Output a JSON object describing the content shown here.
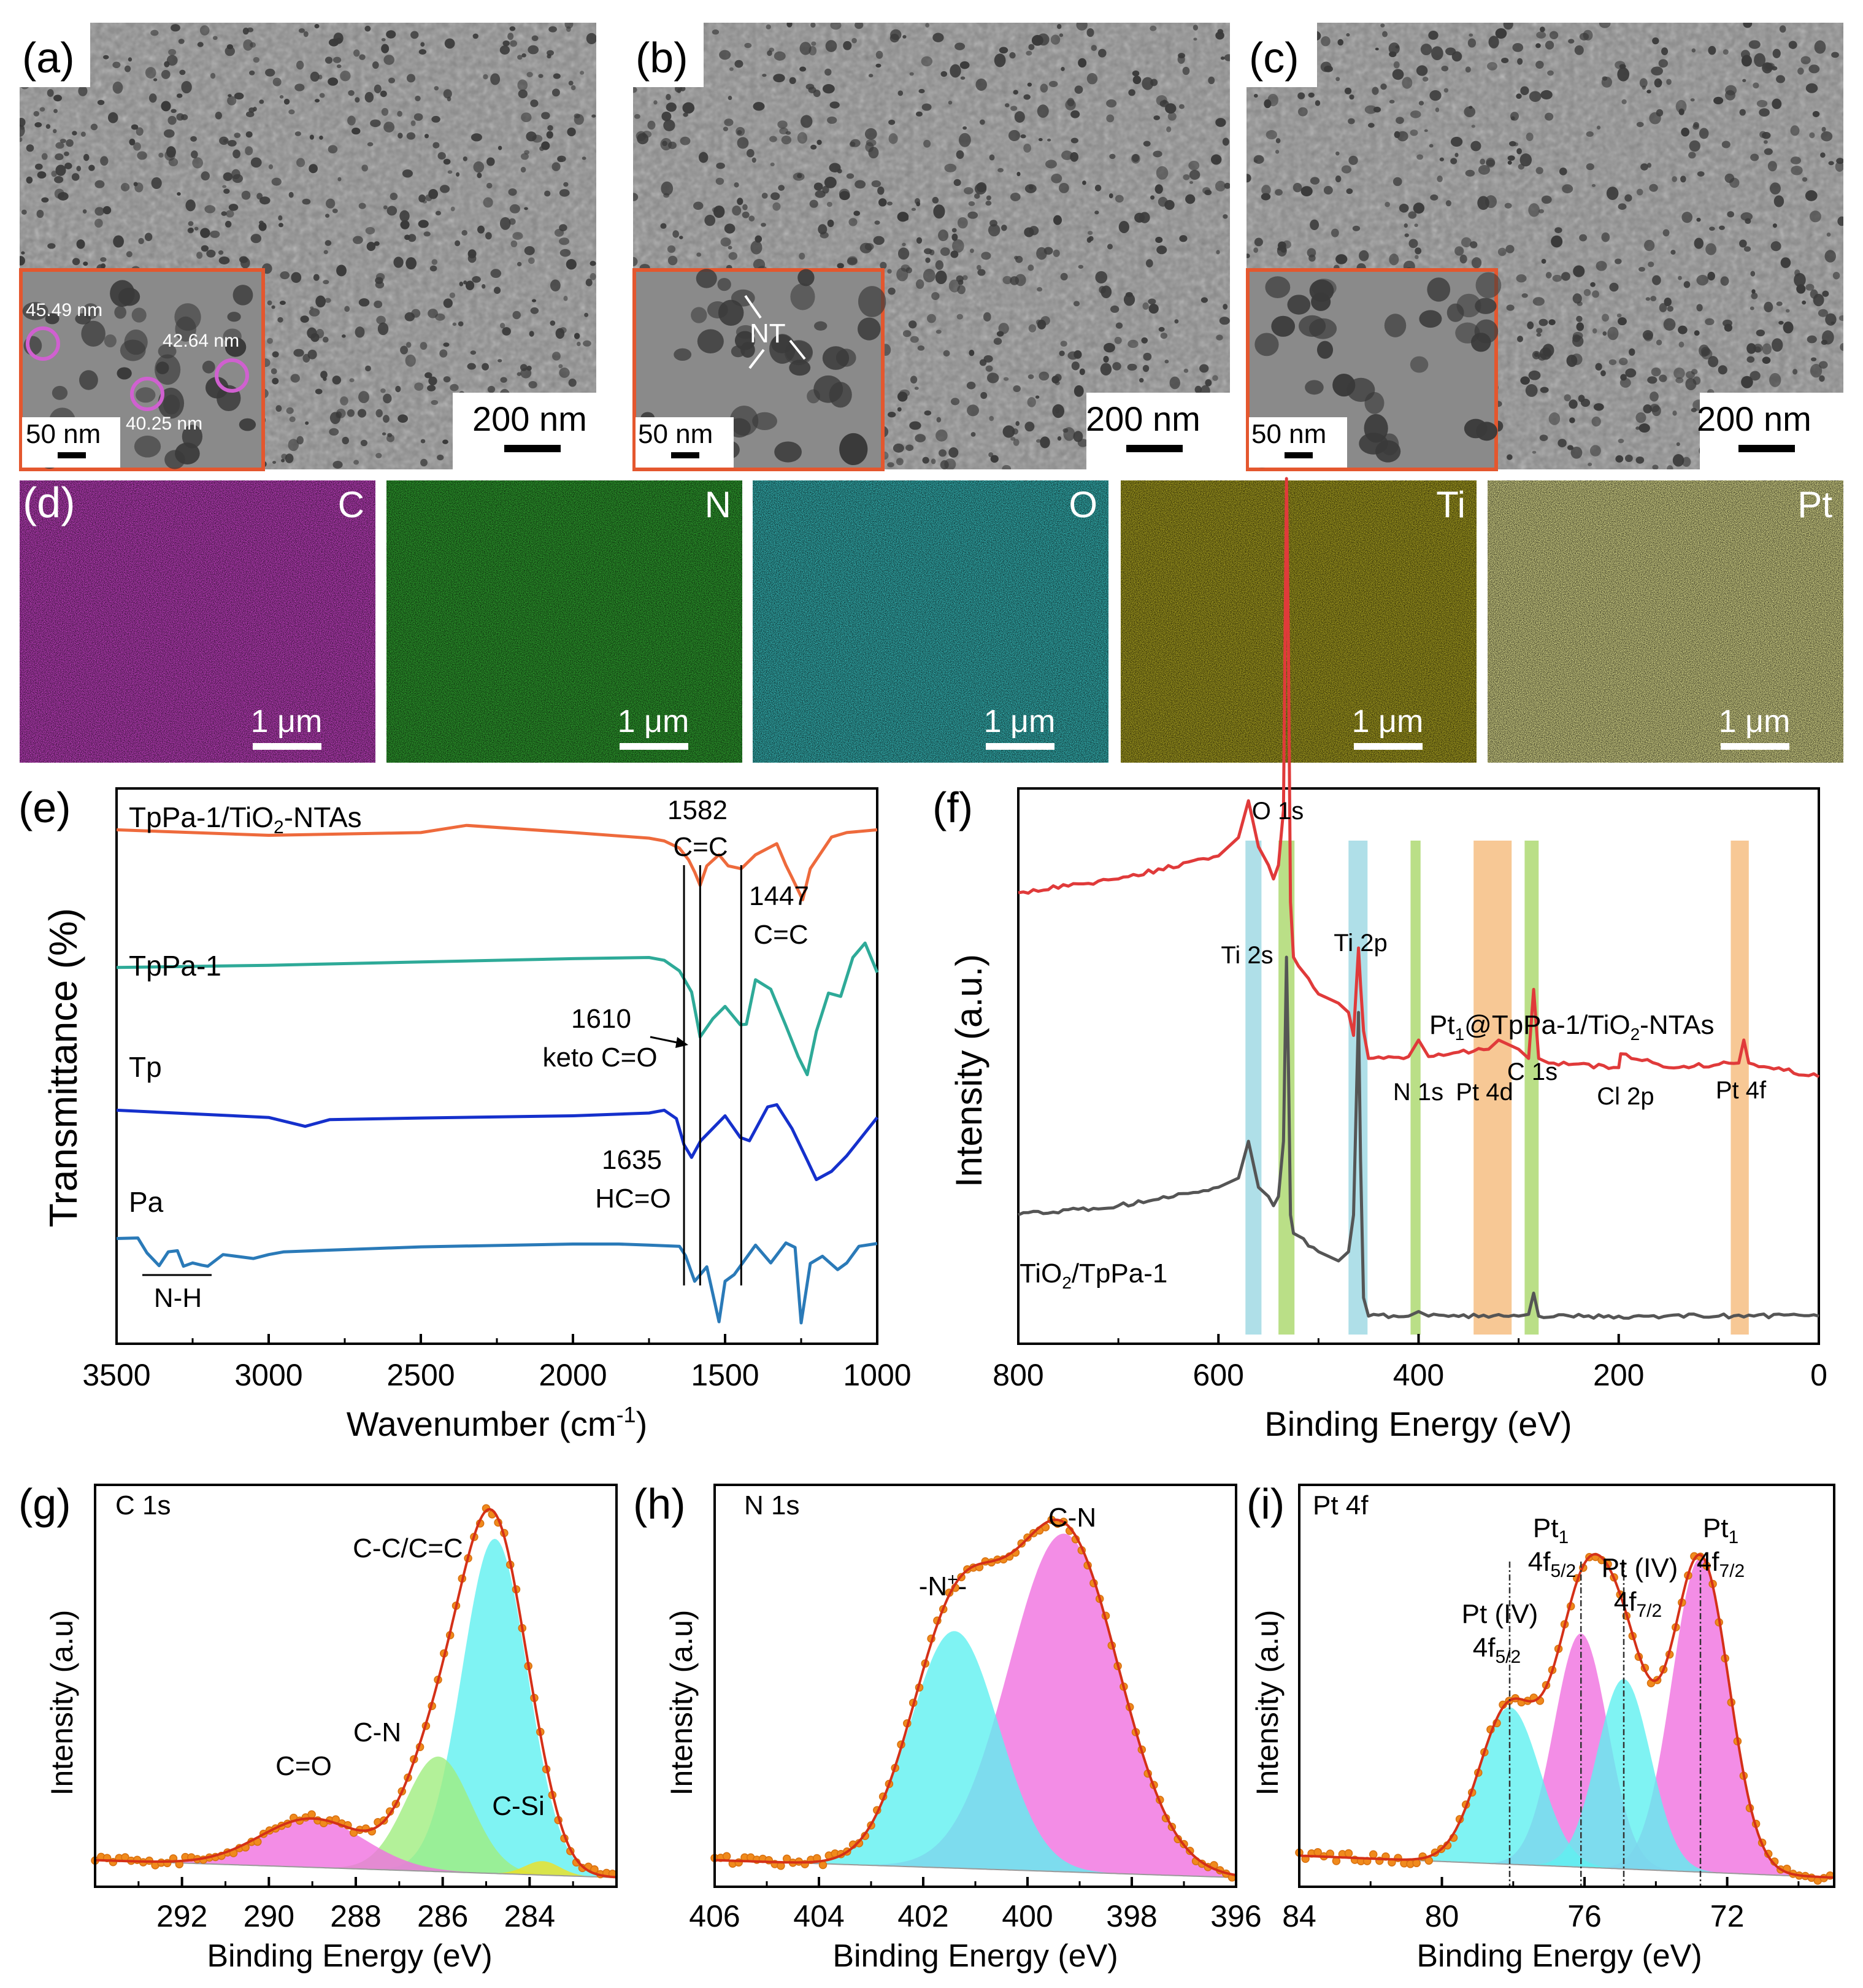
{
  "colors": {
    "sem_bg": "#8c8c8c",
    "pore": "#3a3a3a",
    "inset_border": "#e4572e",
    "eds_C": "#c040c0",
    "eds_N": "#2fa02f",
    "eds_O": "#35b5b5",
    "eds_Ti": "#a8a020",
    "eds_Pt": "#b8b82a",
    "ftir_composite": "#ee6a3c",
    "ftir_tppa": "#2eaa98",
    "ftir_tp": "#1530cc",
    "ftir_pa": "#2a7ab8",
    "xps_pt": "#e03a3a",
    "xps_ti": "#555555",
    "fit_env": "#d43018",
    "points": "#f08a1c",
    "cyan": "#5ff0f0",
    "magenta": "#f070e0",
    "green": "#a0ee80",
    "yellow": "#f0e020",
    "hl_blue": "#a6dbe6",
    "hl_green": "#b2db7a",
    "hl_orange": "#f6c28a"
  },
  "panels": {
    "a": {
      "label": "(a)",
      "scale": "200 nm",
      "inset_scale": "50 nm",
      "measure1": "45.49 nm",
      "measure2": "42.64 nm",
      "measure3": "40.25 nm"
    },
    "b": {
      "label": "(b)",
      "scale": "200 nm",
      "inset_scale": "50 nm",
      "annotation": "NT"
    },
    "c": {
      "label": "(c)",
      "scale": "200 nm",
      "inset_scale": "50 nm"
    },
    "d": {
      "label": "(d)",
      "scale": "1 μm",
      "elements": [
        "C",
        "N",
        "O",
        "Ti",
        "Pt"
      ]
    }
  },
  "chart_data": [
    {
      "id": "e",
      "label": "(e)",
      "type": "line",
      "xlabel": "Wavenumber (cm⁻¹)",
      "ylabel": "Transmittance (%)",
      "xlim": [
        3500,
        1000
      ],
      "xticks": [
        3500,
        3000,
        2500,
        2000,
        1500,
        1000
      ],
      "series": [
        {
          "name": "TpPa-1/TiO₂-NTAs",
          "x": [
            3500,
            3000,
            2500,
            2350,
            2000,
            1750,
            1700,
            1650,
            1620,
            1600,
            1582,
            1560,
            1520,
            1490,
            1447,
            1400,
            1330,
            1300,
            1280,
            1245,
            1220,
            1150,
            1100,
            1000
          ],
          "y": [
            92,
            91,
            91.5,
            92.8,
            91.5,
            90.5,
            90,
            88.7,
            86.6,
            84.4,
            82,
            85.5,
            87.5,
            85.5,
            85,
            87.5,
            89.5,
            85.6,
            83.4,
            79.4,
            85,
            90.7,
            91.5,
            92
          ]
        },
        {
          "name": "TpPa-1",
          "x": [
            3500,
            3000,
            2500,
            2000,
            1750,
            1700,
            1650,
            1610,
            1582,
            1540,
            1500,
            1450,
            1430,
            1400,
            1350,
            1300,
            1260,
            1230,
            1200,
            1160,
            1120,
            1080,
            1040,
            1000
          ],
          "y": [
            67.2,
            67.6,
            68.2,
            68.8,
            69,
            68.5,
            66.6,
            62.8,
            54.7,
            58,
            60.2,
            56.9,
            57,
            65,
            63.3,
            56.7,
            51.2,
            47.9,
            55.7,
            62.6,
            62,
            69,
            71.6,
            66.3
          ]
        },
        {
          "name": "Tp",
          "x": [
            3500,
            3000,
            2880,
            2800,
            2500,
            2000,
            1750,
            1700,
            1660,
            1635,
            1610,
            1580,
            1500,
            1450,
            1420,
            1360,
            1330,
            1280,
            1230,
            1200,
            1150,
            1100,
            1000
          ],
          "y": [
            41.5,
            40.2,
            38.6,
            39.8,
            40.1,
            40.5,
            41,
            41.5,
            40,
            35.3,
            33,
            36,
            40.5,
            36.6,
            36,
            42.1,
            42.5,
            38.2,
            32.5,
            29,
            30.5,
            33.3,
            40.2
          ]
        },
        {
          "name": "Pa",
          "x": [
            3500,
            3430,
            3400,
            3360,
            3330,
            3300,
            3280,
            3250,
            3220,
            3200,
            3150,
            3050,
            3000,
            2950,
            2500,
            2000,
            1850,
            1750,
            1650,
            1630,
            1600,
            1560,
            1520,
            1500,
            1470,
            1400,
            1350,
            1300,
            1270,
            1250,
            1220,
            1180,
            1130,
            1100,
            1060,
            1000
          ],
          "y": [
            18.4,
            18.5,
            15.8,
            13.5,
            16,
            16.2,
            13.4,
            14,
            13.6,
            13.4,
            15.5,
            14.8,
            15.5,
            16,
            16.9,
            17.4,
            17.4,
            17.2,
            17,
            15.3,
            10.7,
            13.3,
            3.4,
            10.7,
            11.9,
            17.2,
            14,
            17.6,
            16.8,
            3.2,
            13.9,
            15.2,
            12.8,
            14,
            17,
            17.5
          ]
        }
      ],
      "annotations": [
        {
          "text": "1582",
          "sub": "C=C"
        },
        {
          "text": "1447",
          "sub": "C=C"
        },
        {
          "text": "1610",
          "sub": "keto C=O"
        },
        {
          "text": "1635",
          "sub": "HC=O"
        },
        {
          "text": "N-H"
        }
      ],
      "vlines": [
        1635,
        1582,
        1447
      ]
    },
    {
      "id": "f",
      "label": "(f)",
      "type": "line",
      "xlabel": "Binding Energy (eV)",
      "ylabel": "Intensity (a.u.)",
      "xlim": [
        800,
        0
      ],
      "xticks": [
        800,
        600,
        400,
        200,
        0
      ],
      "series": [
        {
          "name": "Pt₁@TpPa-1/TiO₂-NTAs",
          "x": [
            800,
            700,
            600,
            580,
            570,
            560,
            550,
            545,
            540,
            535,
            532,
            530,
            528,
            525,
            500,
            480,
            470,
            465,
            460,
            458,
            455,
            450,
            410,
            400,
            390,
            330,
            320,
            300,
            290,
            285,
            280,
            270,
            200,
            198,
            150,
            80,
            75,
            70,
            0
          ],
          "y": [
            49,
            50.5,
            53,
            55,
            59,
            54,
            52,
            50.5,
            52,
            58,
            94,
            75,
            48,
            42,
            38,
            37,
            36,
            33.5,
            43,
            39,
            34,
            31,
            31.2,
            33,
            31.2,
            32,
            33,
            32,
            31,
            38.5,
            31,
            30.5,
            30,
            31.5,
            30,
            30.5,
            33,
            30.5,
            29
          ]
        },
        {
          "name": "TiO₂/TpPa-1",
          "x": [
            800,
            700,
            600,
            580,
            570,
            560,
            550,
            545,
            540,
            535,
            532,
            530,
            528,
            525,
            500,
            480,
            470,
            465,
            460,
            458,
            455,
            450,
            410,
            400,
            390,
            300,
            290,
            285,
            280,
            200,
            100,
            0
          ],
          "y": [
            14,
            15,
            17,
            18,
            22,
            17,
            16,
            15,
            16,
            22,
            42,
            30,
            14,
            12,
            10,
            9,
            10,
            14,
            36,
            20,
            5,
            3,
            3,
            3.5,
            3,
            3,
            3.2,
            5.5,
            3,
            3,
            3,
            3
          ]
        }
      ],
      "peak_labels": [
        "O 1s",
        "Ti 2s",
        "Ti 2p",
        "N 1s",
        "Pt 4d",
        "C 1s",
        "Cl 2p",
        "Pt 4f"
      ],
      "highlight_bands": [
        {
          "from": 573,
          "to": 557,
          "color": "hl_blue"
        },
        {
          "from": 540,
          "to": 524,
          "color": "hl_green"
        },
        {
          "from": 470,
          "to": 451,
          "color": "hl_blue"
        },
        {
          "from": 408,
          "to": 398,
          "color": "hl_green"
        },
        {
          "from": 345,
          "to": 307,
          "color": "hl_orange"
        },
        {
          "from": 294,
          "to": 280,
          "color": "hl_green"
        },
        {
          "from": 88,
          "to": 70,
          "color": "hl_orange"
        }
      ]
    },
    {
      "id": "g",
      "label": "(g)",
      "type": "area",
      "title": "C 1s",
      "xlabel": "Binding Energy (eV)",
      "ylabel": "Intensity (a.u)",
      "xlim": [
        294,
        282
      ],
      "ylim": [
        0,
        1.1
      ],
      "xticks": [
        292,
        290,
        288,
        286,
        284
      ],
      "baseline_y": [
        0.05,
        0.0
      ],
      "components": [
        {
          "name": "C-C/C=C",
          "center": 284.8,
          "height": 0.96,
          "width": 0.75,
          "color": "cyan"
        },
        {
          "name": "C-N",
          "center": 286.1,
          "height": 0.33,
          "width": 0.75,
          "color": "green"
        },
        {
          "name": "C=O",
          "center": 289.0,
          "height": 0.14,
          "width": 1.2,
          "color": "magenta"
        },
        {
          "name": "C-Si",
          "center": 283.7,
          "height": 0.04,
          "width": 0.4,
          "color": "yellow"
        }
      ]
    },
    {
      "id": "h",
      "label": "(h)",
      "type": "area",
      "title": "N 1s",
      "xlabel": "Binding Energy (eV)",
      "ylabel": "Intensity (a.u)",
      "xlim": [
        406,
        396
      ],
      "ylim": [
        0,
        1.1
      ],
      "xticks": [
        406,
        404,
        402,
        400,
        398,
        396
      ],
      "baseline_y": [
        0.05,
        0.0
      ],
      "components": [
        {
          "name": "C-N",
          "center": 399.3,
          "height": 0.97,
          "width": 1.05,
          "color": "magenta"
        },
        {
          "name": "-N⁺-",
          "center": 401.4,
          "height": 0.68,
          "width": 0.85,
          "color": "cyan"
        }
      ]
    },
    {
      "id": "i",
      "label": "(i)",
      "type": "area",
      "title": "Pt 4f",
      "xlabel": "Binding Energy (eV)",
      "ylabel": "Intensity (a.u)",
      "xlim": [
        84,
        69
      ],
      "ylim": [
        0,
        1.05
      ],
      "xticks": [
        84,
        80,
        76,
        72
      ],
      "baseline_y": [
        0.06,
        0.0
      ],
      "components": [
        {
          "name": "Pt₁ 4f7/2",
          "center": 72.75,
          "height": 0.86,
          "width": 0.8,
          "color": "magenta"
        },
        {
          "name": "Pt₁ 4f5/2",
          "center": 76.1,
          "height": 0.64,
          "width": 0.75,
          "color": "magenta"
        },
        {
          "name": "Pt (IV) 4f7/2",
          "center": 74.9,
          "height": 0.52,
          "width": 0.75,
          "color": "cyan"
        },
        {
          "name": "Pt (IV) 4f5/2",
          "center": 78.1,
          "height": 0.43,
          "width": 0.85,
          "color": "cyan"
        }
      ],
      "dashed_lines": [
        78.1,
        76.1,
        74.9,
        72.75
      ]
    }
  ],
  "text": {
    "e_series_labels": [
      "TpPa-1/TiO",
      "2",
      "-NTAs",
      "TpPa-1",
      "Tp",
      "Pa"
    ],
    "f_series_labels": [
      "Pt",
      "1",
      "@TpPa-1/TiO",
      "2",
      "-NTAs",
      "TiO",
      "2",
      "/TpPa-1"
    ],
    "e_xlabel_main": "Wavenumber (cm",
    "e_xlabel_sup": "-1",
    "e_xlabel_end": ")",
    "i_labels": {
      "pt1": "Pt",
      "sub1": "1",
      "f52": "4f",
      "s52": "5/2",
      "f72": "4f",
      "s72": "7/2",
      "ptiv": "Pt (IV)"
    },
    "h_nplus": {
      "pre": "-N",
      "sup": "+",
      "post": "-"
    }
  }
}
